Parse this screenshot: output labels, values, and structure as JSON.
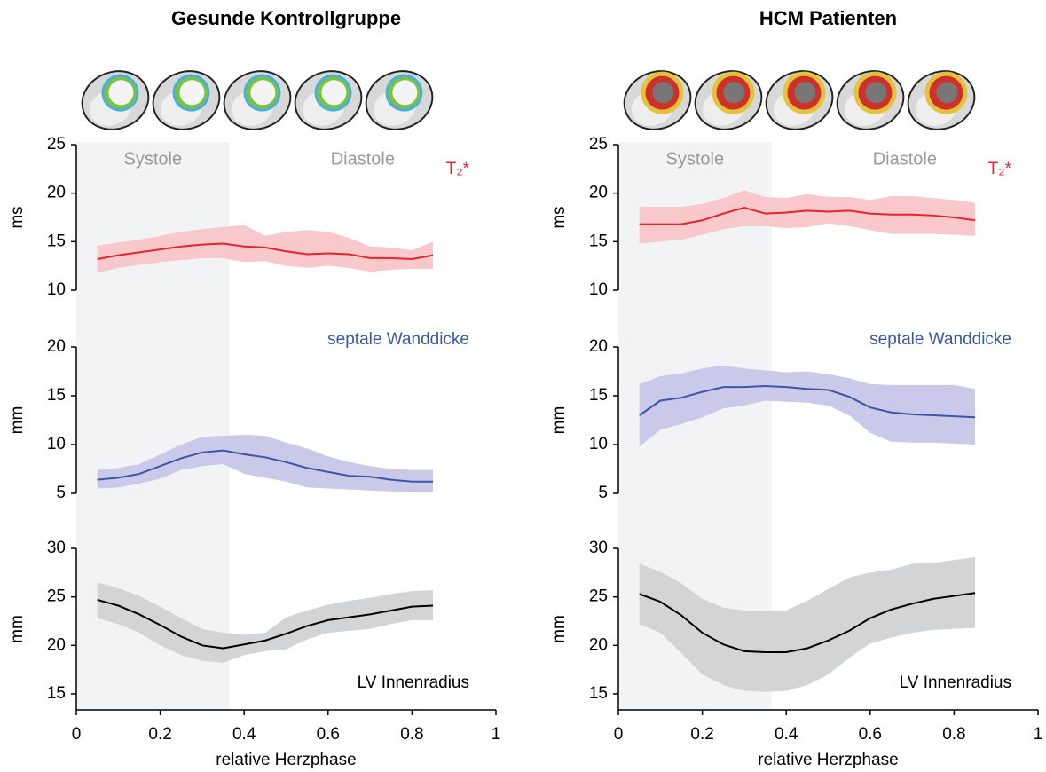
{
  "chart_data": [
    {
      "type": "line",
      "title": "Gesunde Kontrollgruppe",
      "x_label": "relative Herzphase",
      "xlim": [
        0,
        1
      ],
      "xticks": [
        0,
        0.2,
        0.4,
        0.6,
        0.8,
        1
      ],
      "shade_color": "#f2f3f5",
      "phases": [
        {
          "label": "Systole",
          "xlim": [
            0,
            0.365
          ],
          "shaded": true
        },
        {
          "label": "Diastole",
          "xlim": [
            0.365,
            1
          ],
          "shaded": false
        }
      ],
      "x": [
        0.05,
        0.1,
        0.15,
        0.2,
        0.25,
        0.3,
        0.35,
        0.4,
        0.45,
        0.5,
        0.55,
        0.6,
        0.65,
        0.7,
        0.75,
        0.8,
        0.85
      ],
      "panels": [
        {
          "y_label": "ms",
          "ylim": [
            10,
            25
          ],
          "yticks": [
            10,
            15,
            20,
            25
          ],
          "series": [
            {
              "name": "T₂*",
              "color": "#e3262d",
              "band_color": "#f8c8ca",
              "values": [
                13.2,
                13.6,
                13.9,
                14.2,
                14.5,
                14.7,
                14.8,
                14.5,
                14.4,
                14.0,
                13.7,
                13.8,
                13.7,
                13.3,
                13.3,
                13.2,
                13.6
              ],
              "upper": [
                14.6,
                14.9,
                15.2,
                15.6,
                16.0,
                16.3,
                16.5,
                16.7,
                15.6,
                16.0,
                16.2,
                16.0,
                15.4,
                14.5,
                14.4,
                14.1,
                15.0
              ],
              "lower": [
                11.8,
                12.3,
                12.6,
                12.9,
                13.1,
                13.3,
                13.3,
                12.9,
                13.0,
                12.5,
                12.3,
                12.5,
                12.3,
                11.9,
                12.1,
                12.2,
                12.2
              ]
            }
          ]
        },
        {
          "y_label": "mm",
          "ylim": [
            5,
            20
          ],
          "yticks": [
            5,
            10,
            15,
            20
          ],
          "series": [
            {
              "name": "septale Wanddicke",
              "color": "#3a56a6",
              "band_color": "#cac9e9",
              "values": [
                6.4,
                6.6,
                7.0,
                7.8,
                8.6,
                9.2,
                9.4,
                9.0,
                8.7,
                8.2,
                7.6,
                7.2,
                6.8,
                6.7,
                6.4,
                6.2,
                6.2
              ],
              "upper": [
                7.4,
                7.6,
                8.0,
                9.0,
                10.0,
                10.8,
                10.9,
                11.0,
                10.9,
                10.2,
                9.6,
                8.8,
                8.2,
                7.8,
                7.5,
                7.4,
                7.4
              ],
              "lower": [
                5.5,
                5.6,
                6.0,
                6.5,
                7.4,
                7.8,
                8.0,
                7.0,
                6.6,
                6.2,
                5.6,
                5.5,
                5.4,
                5.3,
                5.2,
                5.1,
                5.1
              ]
            }
          ]
        },
        {
          "y_label": "mm",
          "ylim": [
            13.35,
            30
          ],
          "yticks": [
            15,
            20,
            25,
            30
          ],
          "series": [
            {
              "name": "LV Innenradius",
              "color": "#000000",
              "band_color": "#d3d4d6",
              "values": [
                24.7,
                24.1,
                23.2,
                22.1,
                20.9,
                20.0,
                19.7,
                20.1,
                20.5,
                21.2,
                22.0,
                22.6,
                22.9,
                23.2,
                23.6,
                24.0,
                24.1
              ],
              "upper": [
                26.5,
                25.9,
                25.1,
                24.0,
                22.8,
                21.7,
                21.3,
                21.1,
                21.3,
                22.9,
                23.6,
                24.2,
                24.6,
                24.9,
                25.3,
                25.6,
                25.7
              ],
              "lower": [
                22.8,
                22.2,
                21.3,
                20.0,
                19.0,
                18.4,
                18.2,
                19.0,
                19.4,
                19.6,
                20.6,
                21.3,
                21.5,
                21.7,
                22.2,
                22.6,
                22.6
              ]
            }
          ]
        }
      ]
    },
    {
      "type": "line",
      "title": "HCM Patienten",
      "x_label": "relative Herzphase",
      "xlim": [
        0,
        1
      ],
      "xticks": [
        0,
        0.2,
        0.4,
        0.6,
        0.8,
        1
      ],
      "shade_color": "#f2f3f5",
      "phases": [
        {
          "label": "Systole",
          "xlim": [
            0,
            0.365
          ],
          "shaded": true
        },
        {
          "label": "Diastole",
          "xlim": [
            0.365,
            1
          ],
          "shaded": false
        }
      ],
      "x": [
        0.05,
        0.1,
        0.15,
        0.2,
        0.25,
        0.3,
        0.35,
        0.4,
        0.45,
        0.5,
        0.55,
        0.6,
        0.65,
        0.7,
        0.75,
        0.8,
        0.85
      ],
      "panels": [
        {
          "y_label": "ms",
          "ylim": [
            10,
            25
          ],
          "yticks": [
            10,
            15,
            20,
            25
          ],
          "series": [
            {
              "name": "T₂*",
              "color": "#e3262d",
              "band_color": "#f8c8ca",
              "values": [
                16.8,
                16.8,
                16.8,
                17.2,
                17.9,
                18.5,
                17.9,
                18.0,
                18.2,
                18.1,
                18.2,
                17.9,
                17.8,
                17.8,
                17.7,
                17.5,
                17.2
              ],
              "upper": [
                18.6,
                18.6,
                18.6,
                18.9,
                19.5,
                20.3,
                19.6,
                19.5,
                19.9,
                19.6,
                19.6,
                19.3,
                19.7,
                19.7,
                19.5,
                19.3,
                19.0
              ],
              "lower": [
                14.8,
                15.0,
                15.2,
                15.7,
                16.3,
                16.6,
                16.6,
                16.4,
                16.5,
                16.9,
                16.6,
                16.2,
                15.8,
                15.8,
                15.8,
                15.7,
                15.6
              ]
            }
          ]
        },
        {
          "y_label": "mm",
          "ylim": [
            5,
            20
          ],
          "yticks": [
            5,
            10,
            15,
            20
          ],
          "series": [
            {
              "name": "septale Wanddicke",
              "color": "#3a56a6",
              "band_color": "#cac9e9",
              "values": [
                13.0,
                14.5,
                14.8,
                15.4,
                15.9,
                15.9,
                16.0,
                15.9,
                15.7,
                15.6,
                14.9,
                13.8,
                13.3,
                13.1,
                13.0,
                12.9,
                12.8
              ],
              "upper": [
                16.2,
                17.0,
                17.3,
                17.8,
                18.1,
                17.8,
                17.6,
                17.4,
                17.5,
                17.2,
                16.8,
                16.2,
                16.1,
                16.1,
                16.1,
                16.1,
                15.7
              ],
              "lower": [
                9.8,
                11.5,
                12.1,
                12.8,
                13.7,
                14.0,
                14.5,
                14.4,
                14.3,
                14.0,
                13.0,
                11.2,
                10.3,
                10.2,
                10.2,
                10.1,
                10.0
              ]
            }
          ]
        },
        {
          "y_label": "mm",
          "ylim": [
            13.35,
            30
          ],
          "yticks": [
            15,
            20,
            25,
            30
          ],
          "series": [
            {
              "name": "LV Innenradius",
              "color": "#000000",
              "band_color": "#d3d4d6",
              "values": [
                25.3,
                24.5,
                23.1,
                21.3,
                20.1,
                19.4,
                19.3,
                19.3,
                19.7,
                20.5,
                21.5,
                22.8,
                23.7,
                24.3,
                24.8,
                25.1,
                25.4
              ],
              "upper": [
                28.4,
                27.6,
                26.4,
                24.8,
                23.9,
                23.6,
                23.5,
                23.6,
                24.6,
                25.8,
                27.0,
                27.5,
                27.8,
                28.4,
                28.5,
                28.8,
                29.1
              ],
              "lower": [
                22.2,
                21.3,
                19.2,
                17.0,
                15.9,
                15.3,
                15.2,
                15.3,
                15.9,
                17.0,
                18.7,
                20.2,
                20.8,
                21.3,
                21.6,
                21.7,
                21.8
              ]
            }
          ]
        }
      ]
    }
  ]
}
